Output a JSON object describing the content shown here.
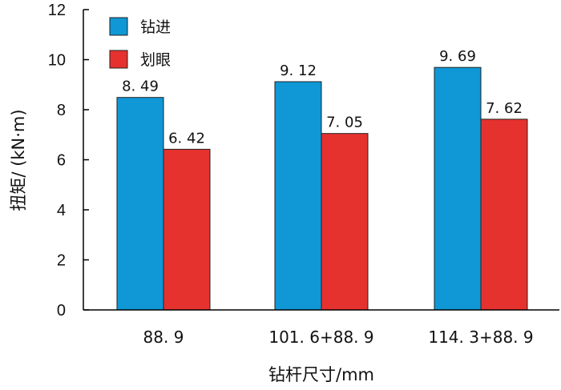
{
  "chart_data": {
    "type": "bar",
    "categories": [
      "88. 9",
      "101. 6+88. 9",
      "114. 3+88. 9"
    ],
    "series": [
      {
        "name": "钻进",
        "values": [
          8.49,
          9.12,
          9.69
        ],
        "labels": [
          "8. 49",
          "9. 12",
          "9. 69"
        ],
        "color": "#0f97d6"
      },
      {
        "name": "划眼",
        "values": [
          6.42,
          7.05,
          7.62
        ],
        "labels": [
          "6. 42",
          "7. 05",
          "7. 62"
        ],
        "color": "#e5322f"
      }
    ],
    "xlabel": "钻杆尺寸/mm",
    "ylabel": "扭矩/ (kN·m)",
    "ylim": [
      0,
      12
    ],
    "yticks": [
      "0",
      "2",
      "4",
      "6",
      "8",
      "10",
      "12"
    ],
    "grid": false,
    "legend": "top-left"
  }
}
